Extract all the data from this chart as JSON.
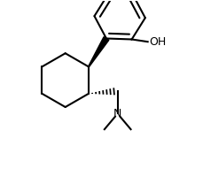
{
  "bg_color": "#ffffff",
  "line_color": "#000000",
  "line_width": 1.5,
  "text_color": "#000000",
  "oh_label": "OH",
  "n_label": "N",
  "font_size": 9,
  "xlim": [
    -3.5,
    4.5
  ],
  "ylim": [
    -4.5,
    4.0
  ],
  "figsize": [
    2.3,
    2.08
  ],
  "dpi": 100
}
